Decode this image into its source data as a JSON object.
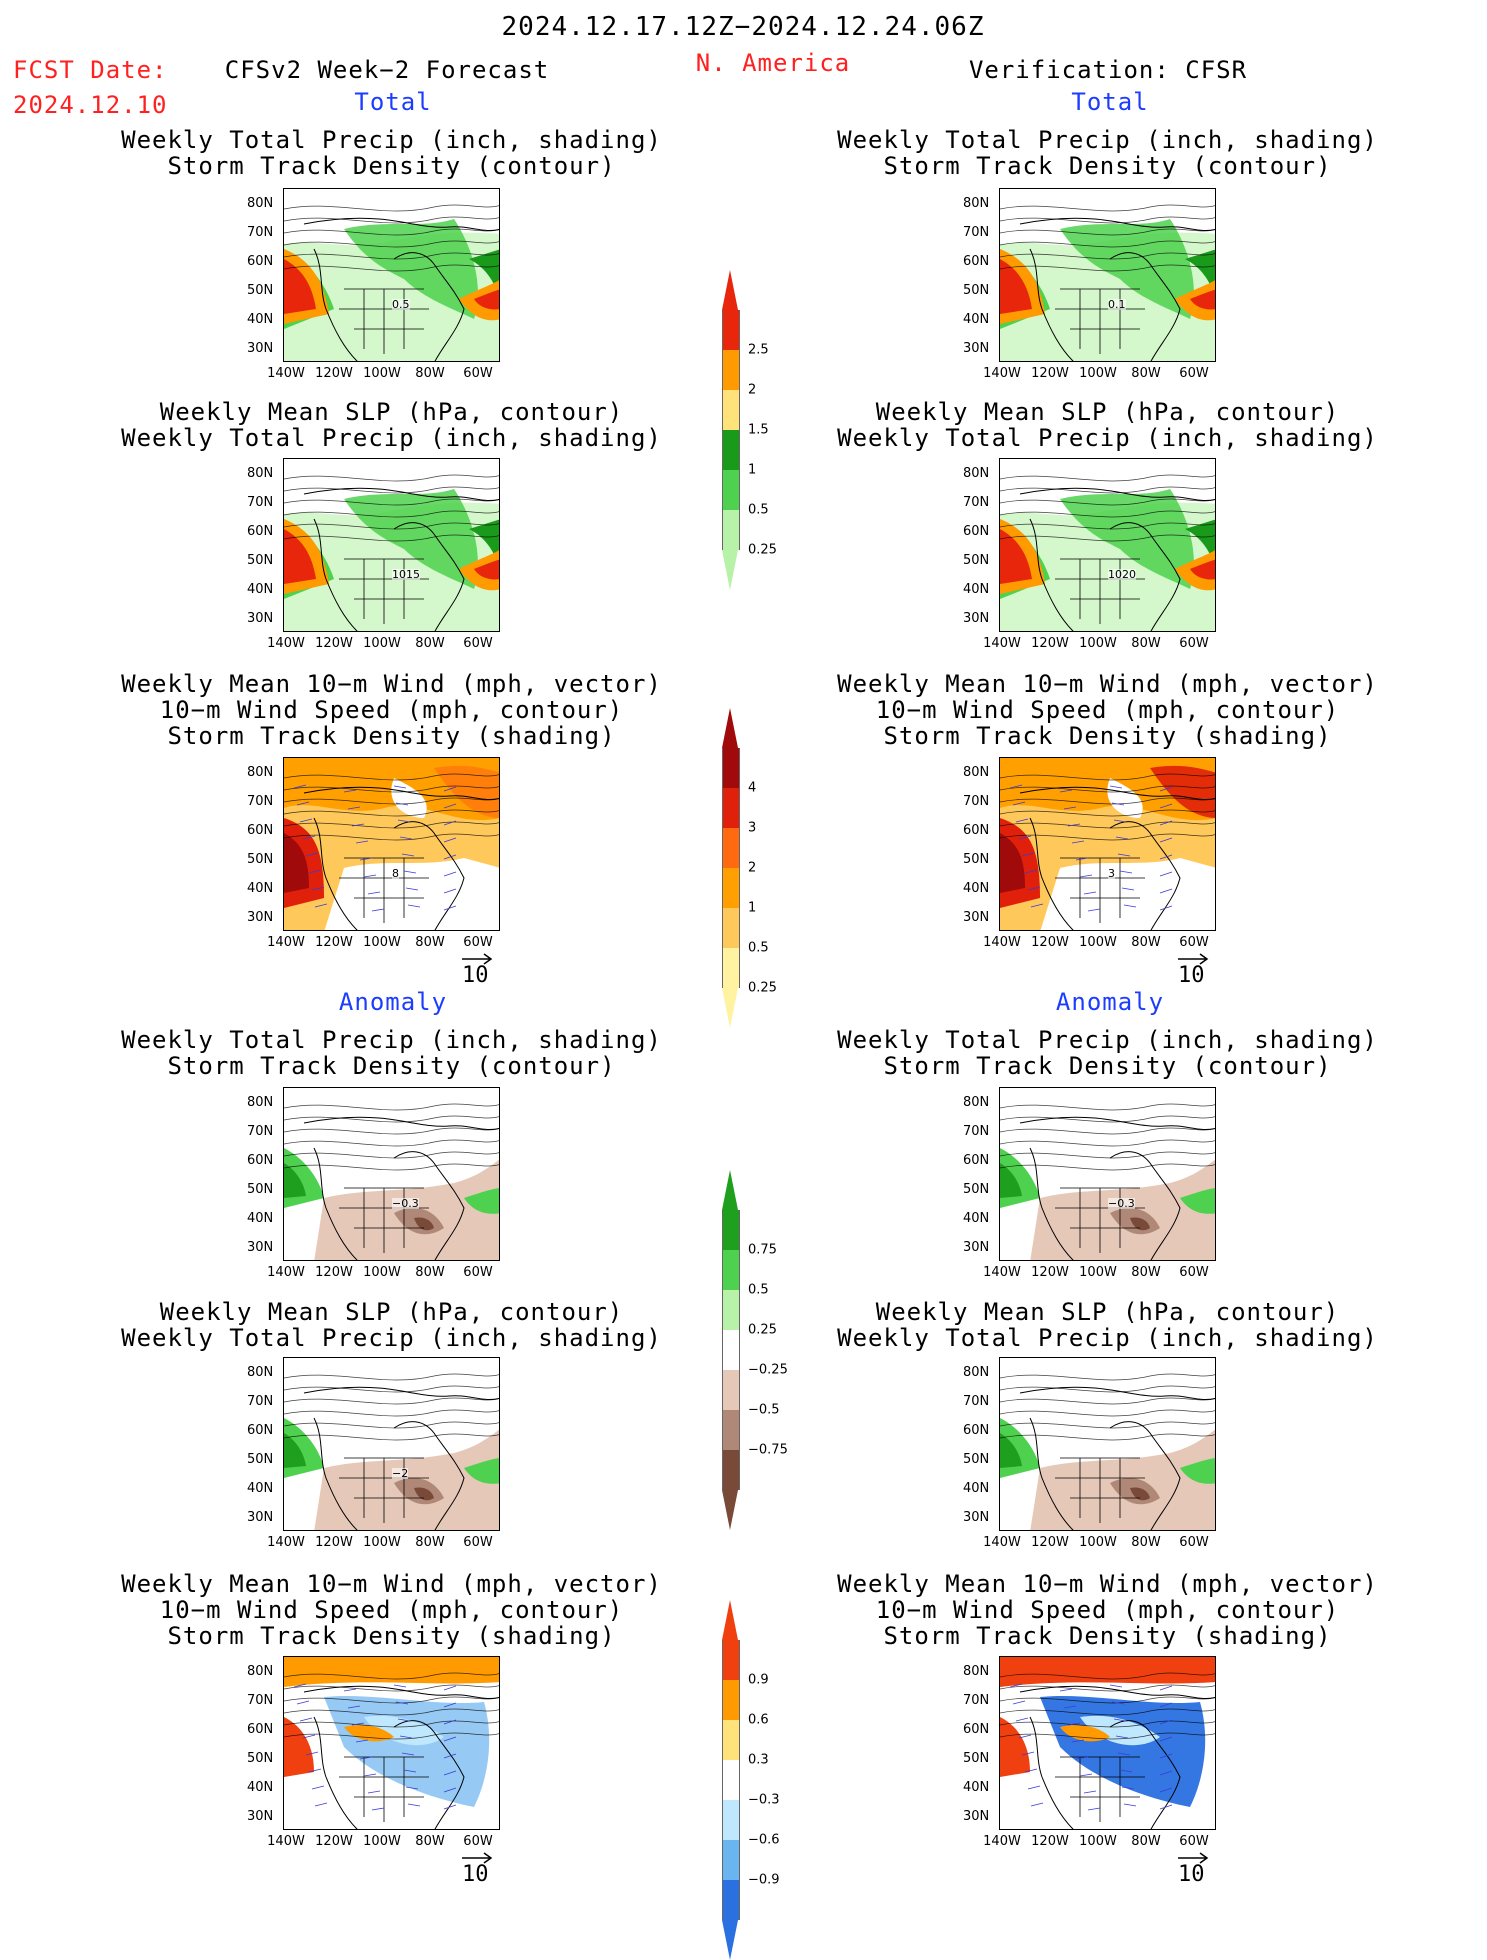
{
  "header": {
    "date_range": "2024.12.17.12Z−2024.12.24.06Z",
    "region": "N. America",
    "fcst_label": "FCST Date:",
    "fcst_date": "2024.12.10",
    "forecast_title": "CFSv2 Week−2 Forecast",
    "verification_title": "Verification: CFSR",
    "total_label": "Total",
    "anomaly_label": "Anomaly"
  },
  "panels": [
    {
      "section": "total",
      "column": "forecast",
      "title": [
        "Weekly Total Precip (inch, shading)",
        "Storm Track Density (contour)"
      ],
      "shading": "precip_total",
      "label_text": "0.5"
    },
    {
      "section": "total",
      "column": "verification",
      "title": [
        "Weekly Total Precip (inch, shading)",
        "Storm Track Density (contour)"
      ],
      "shading": "precip_total",
      "label_text": "0.1"
    },
    {
      "section": "total",
      "column": "forecast",
      "title": [
        "Weekly Mean SLP (hPa, contour)",
        "Weekly Total Precip (inch, shading)"
      ],
      "shading": "precip_total",
      "label_text": "1015"
    },
    {
      "section": "total",
      "column": "verification",
      "title": [
        "Weekly Mean SLP (hPa, contour)",
        "Weekly Total Precip (inch, shading)"
      ],
      "shading": "precip_total",
      "label_text": "1020"
    },
    {
      "section": "total",
      "column": "forecast",
      "title": [
        "Weekly Mean 10−m Wind (mph, vector)",
        "10−m Wind Speed (mph, contour)",
        "Storm Track Density (shading)"
      ],
      "shading": "storm_total",
      "label_text": "8"
    },
    {
      "section": "total",
      "column": "verification",
      "title": [
        "Weekly Mean 10−m Wind (mph, vector)",
        "10−m Wind Speed (mph, contour)",
        "Storm Track Density (shading)"
      ],
      "shading": "storm_total",
      "label_text": "3"
    },
    {
      "section": "anomaly",
      "column": "forecast",
      "title": [
        "Weekly Total Precip (inch, shading)",
        "Storm Track Density (contour)"
      ],
      "shading": "precip_anom",
      "label_text": "−0.3"
    },
    {
      "section": "anomaly",
      "column": "verification",
      "title": [
        "Weekly Total Precip (inch, shading)",
        "Storm Track Density (contour)"
      ],
      "shading": "precip_anom",
      "label_text": "−0.3"
    },
    {
      "section": "anomaly",
      "column": "forecast",
      "title": [
        "Weekly Mean SLP (hPa, contour)",
        "Weekly Total Precip (inch, shading)"
      ],
      "shading": "precip_anom",
      "label_text": "−2"
    },
    {
      "section": "anomaly",
      "column": "verification",
      "title": [
        "Weekly Mean SLP (hPa, contour)",
        "Weekly Total Precip (inch, shading)"
      ],
      "shading": "precip_anom",
      "label_text": ""
    },
    {
      "section": "anomaly",
      "column": "forecast",
      "title": [
        "Weekly Mean 10−m Wind (mph, vector)",
        "10−m Wind Speed (mph, contour)",
        "Storm Track Density (shading)"
      ],
      "shading": "storm_anom",
      "label_text": ""
    },
    {
      "section": "anomaly",
      "column": "verification",
      "title": [
        "Weekly Mean 10−m Wind (mph, vector)",
        "10−m Wind Speed (mph, contour)",
        "Storm Track Density (shading)"
      ],
      "shading": "storm_anom",
      "label_text": ""
    }
  ],
  "axes": {
    "lat_labels": [
      "80N",
      "70N",
      "60N",
      "50N",
      "40N",
      "30N"
    ],
    "lon_labels": [
      "140W",
      "120W",
      "100W",
      "80W",
      "60W"
    ]
  },
  "vector_reference": "10",
  "colorbars": {
    "precip_total": {
      "labels": [
        "2.5",
        "2",
        "1.5",
        "1",
        "0.5",
        "0.25"
      ],
      "colors": [
        "#e8260c",
        "#ff9a00",
        "#ffe27a",
        "#1a9a1a",
        "#4ed14e",
        "#b8f2a8"
      ]
    },
    "storm_total": {
      "labels": [
        "4",
        "3",
        "2",
        "1",
        "0.5",
        "0.25"
      ],
      "colors": [
        "#a00a0a",
        "#e0200a",
        "#ff6a10",
        "#ff9f00",
        "#ffc85a",
        "#fff2a0"
      ]
    },
    "precip_anom": {
      "labels": [
        "0.75",
        "0.5",
        "0.25",
        "−0.25",
        "−0.5",
        "−0.75"
      ],
      "colors": [
        "#1ea01e",
        "#4ed14e",
        "#b8f2a8",
        "#ffffff",
        "#e6c8b8",
        "#b08878",
        "#7a4a38"
      ]
    },
    "storm_anom": {
      "labels": [
        "0.9",
        "0.6",
        "0.3",
        "−0.3",
        "−0.6",
        "−0.9"
      ],
      "colors": [
        "#f04010",
        "#ff9a00",
        "#ffe27a",
        "#ffffff",
        "#bfe8ff",
        "#6ab4f0",
        "#2a70e0"
      ]
    }
  }
}
